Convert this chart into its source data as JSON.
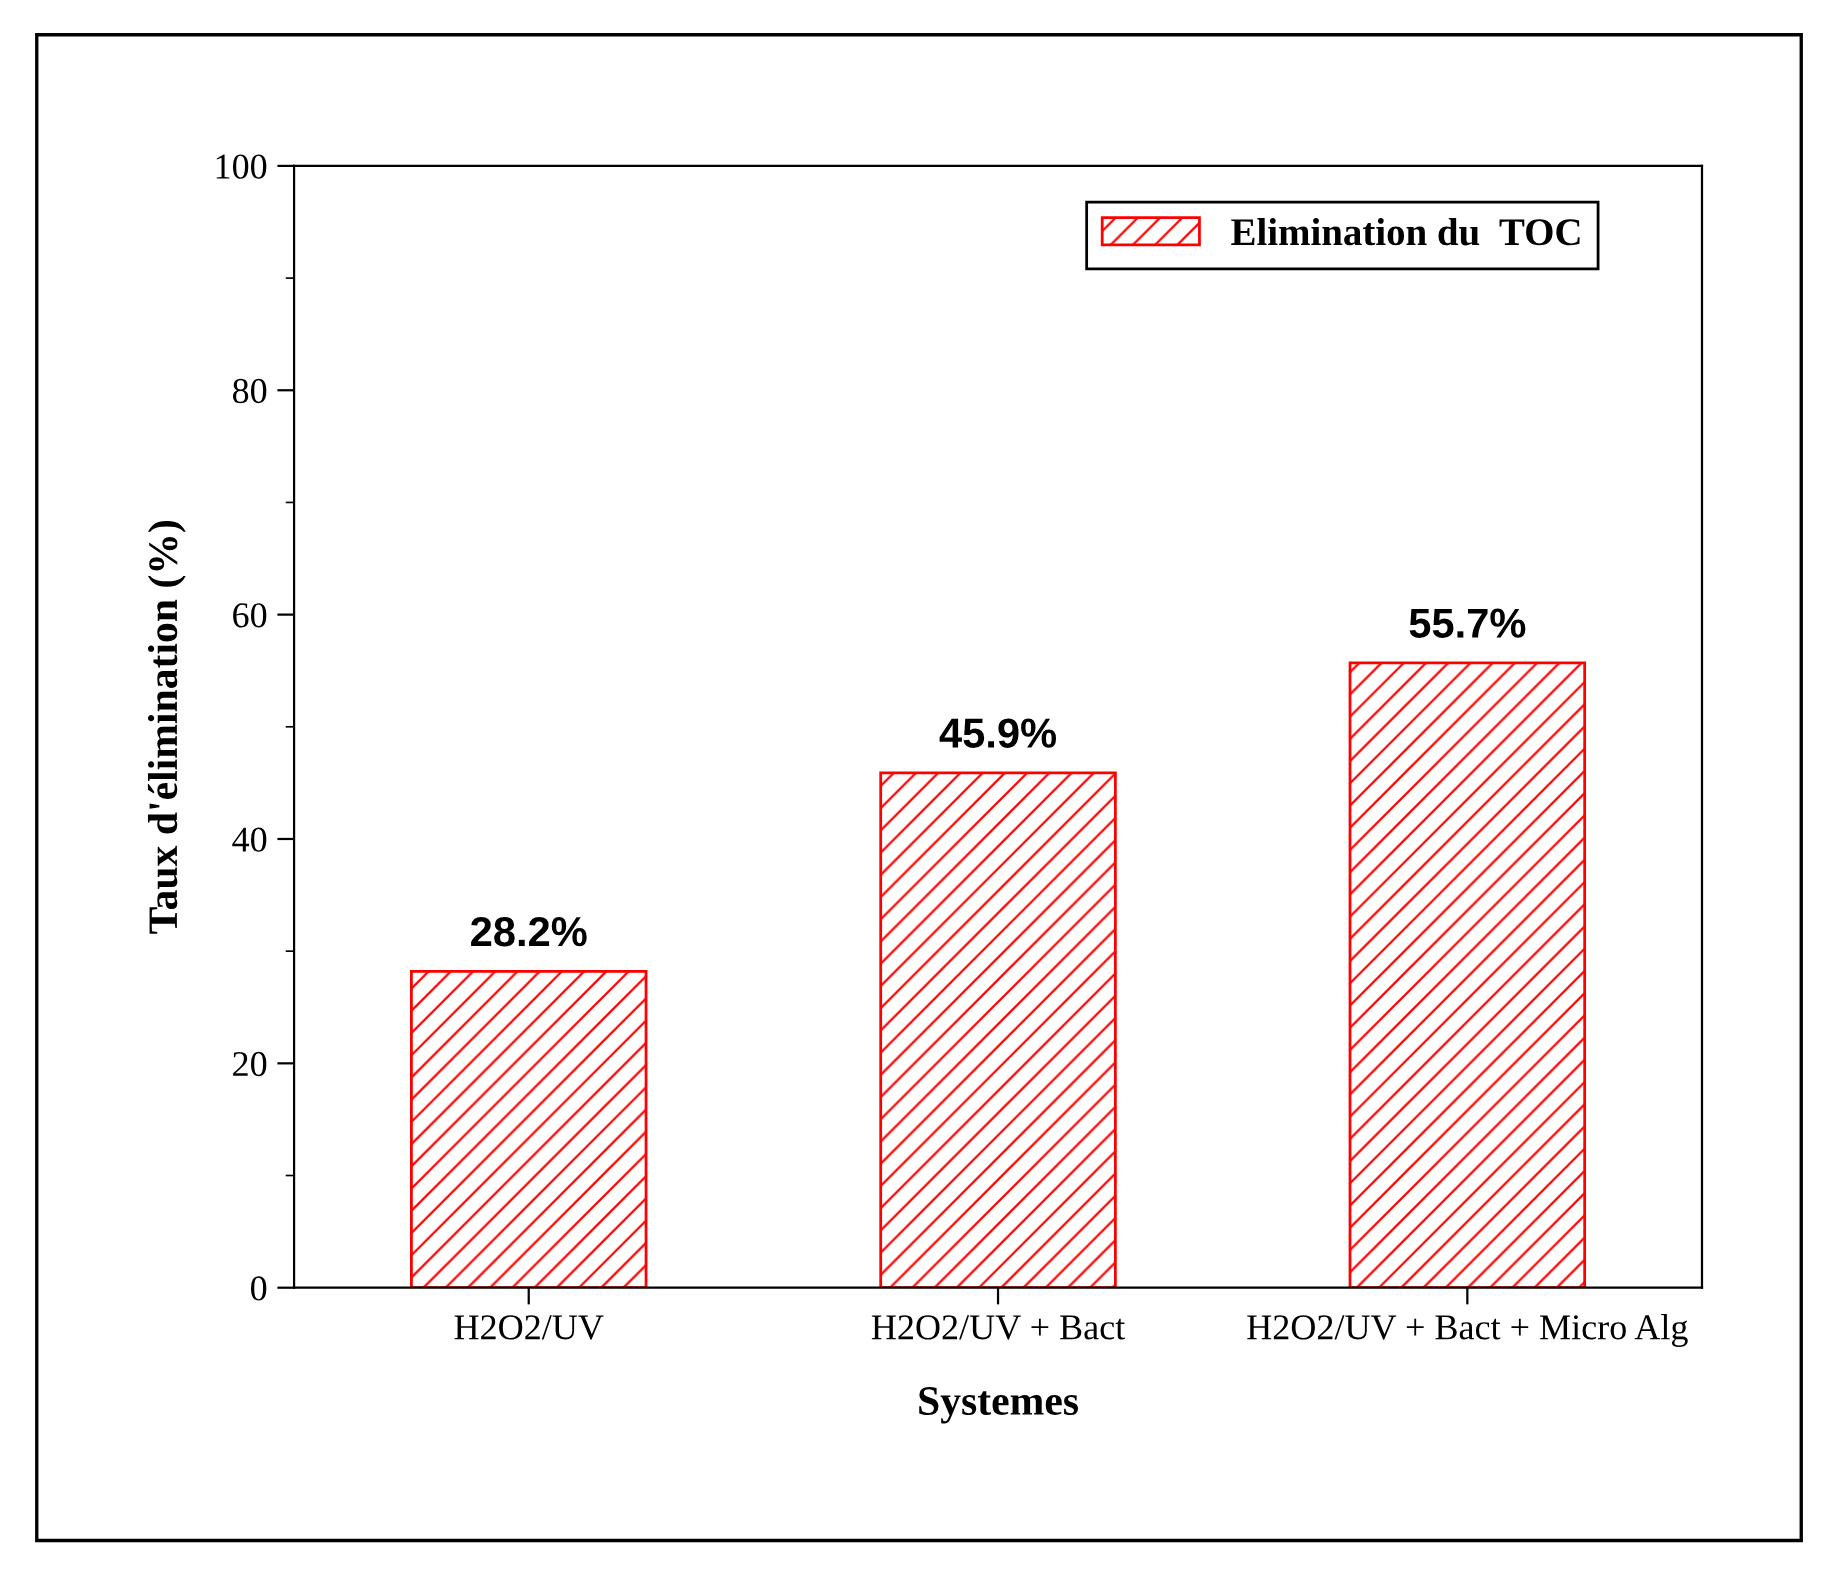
{
  "chart_data": {
    "type": "bar",
    "xlabel": "Systemes",
    "ylabel": "Taux d'élimination (%)",
    "categories": [
      "H2O2/UV",
      "H2O2/UV + Bact",
      "H2O2/UV + Bact + Micro Alg"
    ],
    "series": [
      {
        "name": "Elimination du  TOC",
        "color": "#ff0000",
        "values": [
          28.2,
          45.9,
          55.7
        ],
        "value_labels": [
          "28.2%",
          "45.9%",
          "55.7%"
        ]
      }
    ],
    "ylim": [
      0,
      100
    ],
    "yticks": [
      0,
      {
        "value": 10,
        "label": null
      },
      20,
      {
        "value": 30,
        "label": null
      },
      40,
      {
        "value": 50,
        "label": null
      },
      60,
      {
        "value": 70,
        "label": null
      },
      80,
      {
        "value": 90,
        "label": null
      },
      100
    ],
    "grid": false,
    "legend": "top right"
  }
}
